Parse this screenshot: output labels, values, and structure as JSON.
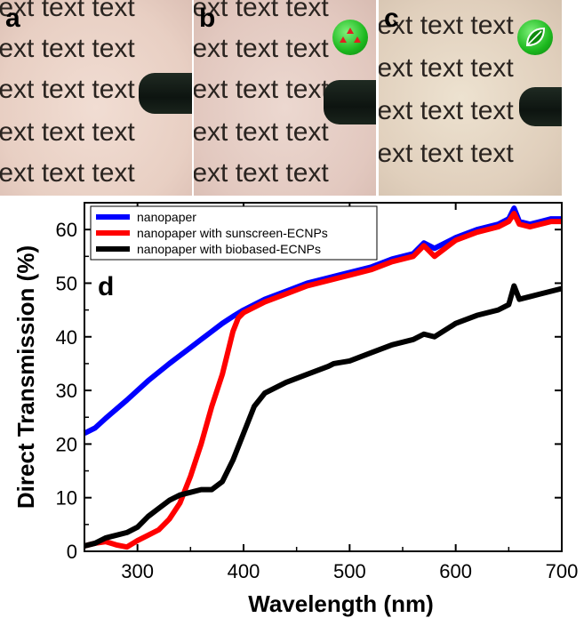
{
  "panels": [
    {
      "letter": "a",
      "text": "text text text"
    },
    {
      "letter": "b",
      "text": "text text text"
    },
    {
      "letter": "c",
      "text": "text text text"
    }
  ],
  "badges": {
    "b": {
      "icon": "triangles-icon",
      "color": "#22c022"
    },
    "c": {
      "icon": "leaf-icon",
      "color": "#22c022"
    }
  },
  "chart_data": {
    "type": "line",
    "panel_label": "d",
    "xlabel": "Wavelength (nm)",
    "ylabel": "Direct Transmission (%)",
    "xlim": [
      250,
      700
    ],
    "ylim": [
      0,
      65
    ],
    "xticks": [
      300,
      400,
      500,
      600,
      700
    ],
    "yticks": [
      0,
      10,
      20,
      30,
      40,
      50,
      60
    ],
    "legend_position": "top-left",
    "series": [
      {
        "name": "nanopaper",
        "color": "#0000ff",
        "x": [
          250,
          260,
          270,
          280,
          290,
          300,
          310,
          320,
          330,
          340,
          350,
          360,
          370,
          380,
          390,
          400,
          420,
          440,
          460,
          480,
          500,
          520,
          540,
          560,
          570,
          580,
          600,
          620,
          640,
          650,
          655,
          660,
          670,
          680,
          690,
          700
        ],
        "y": [
          22,
          23,
          24.8,
          26.5,
          28.2,
          30,
          31.8,
          33.4,
          35,
          36.5,
          38,
          39.5,
          41,
          42.5,
          43.8,
          45,
          47,
          48.5,
          50,
          51,
          52,
          53,
          54.5,
          55.5,
          57.5,
          56.5,
          58.5,
          60,
          61,
          62,
          64,
          61.5,
          61,
          61.5,
          62,
          62
        ]
      },
      {
        "name": "nanopaper with sunscreen-ECNPs",
        "color": "#ff0000",
        "x": [
          250,
          260,
          270,
          280,
          290,
          300,
          310,
          320,
          330,
          340,
          350,
          360,
          370,
          380,
          385,
          390,
          395,
          400,
          420,
          440,
          460,
          480,
          500,
          520,
          540,
          560,
          570,
          580,
          600,
          620,
          640,
          650,
          655,
          660,
          670,
          680,
          690,
          700
        ],
        "y": [
          1,
          1.5,
          1.8,
          1.2,
          0.8,
          2,
          3,
          4,
          6,
          9,
          14,
          20,
          27,
          33,
          37,
          41,
          43.5,
          44.5,
          46.5,
          48,
          49.5,
          50.5,
          51.5,
          52.5,
          54,
          55,
          57,
          55,
          58,
          59.5,
          60.5,
          61.5,
          63,
          61,
          60.5,
          61,
          61.5,
          61.5
        ]
      },
      {
        "name": "nanopaper with biobased-ECNPs",
        "color": "#000000",
        "x": [
          250,
          260,
          270,
          280,
          290,
          300,
          310,
          320,
          330,
          340,
          350,
          360,
          370,
          380,
          390,
          400,
          410,
          420,
          440,
          460,
          480,
          485,
          500,
          520,
          540,
          560,
          570,
          580,
          600,
          620,
          640,
          650,
          655,
          660,
          670,
          680,
          690,
          700
        ],
        "y": [
          1,
          1.5,
          2.5,
          3,
          3.5,
          4.5,
          6.5,
          8,
          9.5,
          10.5,
          11,
          11.5,
          11.5,
          13,
          17,
          22,
          27,
          29.5,
          31.5,
          33,
          34.5,
          35,
          35.5,
          37,
          38.5,
          39.5,
          40.5,
          40,
          42.5,
          44,
          45,
          46,
          49.5,
          47,
          47.5,
          48,
          48.5,
          49
        ]
      }
    ]
  }
}
